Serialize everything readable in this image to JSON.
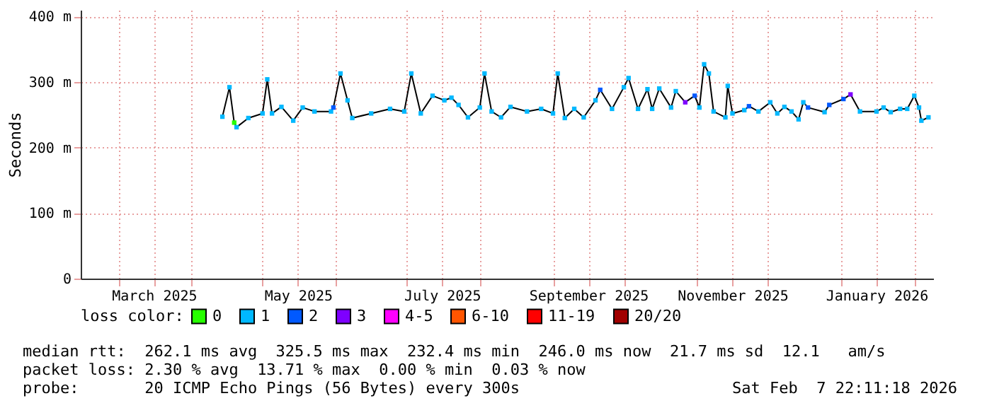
{
  "chart_data": {
    "type": "line",
    "ylabel": "Seconds",
    "legend_title": "loss color:",
    "legend": "bottom",
    "grid": true,
    "marker": "square",
    "xlim": [
      "2025-02-13",
      "2026-02-09"
    ],
    "xticks": [
      {
        "value": "2025-03-01",
        "label": null
      },
      {
        "value": "2025-03-16",
        "label": "March 2025"
      },
      {
        "value": "2025-04-01",
        "label": null
      },
      {
        "value": "2025-05-01",
        "label": null
      },
      {
        "value": "2025-05-16",
        "label": "May 2025"
      },
      {
        "value": "2025-06-01",
        "label": null
      },
      {
        "value": "2025-07-01",
        "label": null
      },
      {
        "value": "2025-07-16",
        "label": "July 2025"
      },
      {
        "value": "2025-08-01",
        "label": null
      },
      {
        "value": "2025-09-01",
        "label": null
      },
      {
        "value": "2025-09-16",
        "label": "September 2025"
      },
      {
        "value": "2025-10-01",
        "label": null
      },
      {
        "value": "2025-11-01",
        "label": null
      },
      {
        "value": "2025-11-16",
        "label": "November 2025"
      },
      {
        "value": "2025-12-01",
        "label": null
      },
      {
        "value": "2026-01-01",
        "label": null
      },
      {
        "value": "2026-01-16",
        "label": "January 2026"
      },
      {
        "value": "2026-02-01",
        "label": null
      }
    ],
    "ylim": [
      0,
      410
    ],
    "yticks": [
      0,
      {
        "value": 100,
        "label": "100 m"
      },
      {
        "value": 200,
        "label": "200 m"
      },
      {
        "value": 300,
        "label": "300 m"
      },
      {
        "value": 400,
        "label": "400 m"
      }
    ],
    "annotations": [
      "median rtt:  262.1 ms avg  325.5 ms max  232.4 ms min  246.0 ms now  21.7 ms sd  12.1   am/s",
      "packet loss: 2.30 % avg  13.71 % max  0.00 % min  0.03 % now",
      "probe:       20 ICMP Echo Pings (56 Bytes) every 300s",
      "Sat Feb  7 22:11:18 2026"
    ],
    "series": [
      {
        "type": "line",
        "color": "#000000",
        "marker": "none",
        "x": [
          "2025-04-14",
          "2025-04-17",
          "2025-04-19",
          "2025-04-20",
          "2025-04-25",
          "2025-05-01",
          "2025-05-03",
          "2025-05-05",
          "2025-05-09",
          "2025-05-14",
          "2025-05-18",
          "2025-05-23",
          "2025-05-30",
          "2025-05-31",
          "2025-06-03",
          "2025-06-06",
          "2025-06-08",
          "2025-06-16",
          "2025-06-24",
          "2025-06-30",
          "2025-07-03",
          "2025-07-07",
          "2025-07-12",
          "2025-07-17",
          "2025-07-20",
          "2025-07-23",
          "2025-07-27",
          "2025-08-01",
          "2025-08-03",
          "2025-08-06",
          "2025-08-10",
          "2025-08-14",
          "2025-08-21",
          "2025-08-27",
          "2025-09-01",
          "2025-09-03",
          "2025-09-06",
          "2025-09-10",
          "2025-09-14",
          "2025-09-19",
          "2025-09-21",
          "2025-09-26",
          "2025-10-01",
          "2025-10-03",
          "2025-10-07",
          "2025-10-11",
          "2025-10-13",
          "2025-10-16",
          "2025-10-21",
          "2025-10-23",
          "2025-10-27",
          "2025-10-31",
          "2025-11-02",
          "2025-11-04",
          "2025-11-06",
          "2025-11-08",
          "2025-11-13",
          "2025-11-14",
          "2025-11-16",
          "2025-11-21",
          "2025-11-23",
          "2025-11-27",
          "2025-12-02",
          "2025-12-05",
          "2025-12-08",
          "2025-12-11",
          "2025-12-14",
          "2025-12-16",
          "2025-12-18",
          "2025-12-25",
          "2025-12-27",
          "2026-01-02",
          "2026-01-05",
          "2026-01-09",
          "2026-01-16",
          "2026-01-19",
          "2026-01-22",
          "2026-01-26",
          "2026-01-29",
          "2026-02-01",
          "2026-02-03",
          "2026-02-04",
          "2026-02-07"
        ],
        "values": [
          247,
          292,
          238,
          231,
          245,
          252,
          304,
          252,
          262,
          241,
          261,
          255,
          255,
          261,
          313,
          272,
          245,
          252,
          259,
          255,
          313,
          252,
          279,
          272,
          276,
          265,
          246,
          261,
          313,
          255,
          246,
          262,
          255,
          259,
          252,
          313,
          245,
          259,
          246,
          272,
          288,
          259,
          292,
          306,
          259,
          289,
          259,
          290,
          261,
          286,
          269,
          279,
          261,
          327,
          313,
          255,
          246,
          294,
          252,
          257,
          263,
          255,
          269,
          252,
          262,
          255,
          243,
          269,
          261,
          254,
          265,
          274,
          281,
          255,
          255,
          261,
          254,
          259,
          259,
          279,
          261,
          241,
          246
        ]
      },
      {
        "type": "scatter",
        "name": "0",
        "color": "#26ff00",
        "x": [
          "2025-04-19"
        ],
        "values": [
          238
        ]
      },
      {
        "type": "scatter",
        "name": "1",
        "color": "#00b8ff",
        "x": [
          "2025-04-14",
          "2025-04-17",
          "2025-04-20",
          "2025-04-25",
          "2025-05-01",
          "2025-05-03",
          "2025-05-05",
          "2025-05-09",
          "2025-05-14",
          "2025-05-18",
          "2025-05-23",
          "2025-05-30",
          "2025-06-03",
          "2025-06-06",
          "2025-06-08",
          "2025-06-16",
          "2025-06-24",
          "2025-06-30",
          "2025-07-03",
          "2025-07-07",
          "2025-07-12",
          "2025-07-17",
          "2025-07-20",
          "2025-07-23",
          "2025-07-27",
          "2025-08-01",
          "2025-08-03",
          "2025-08-06",
          "2025-08-10",
          "2025-08-14",
          "2025-08-21",
          "2025-08-27",
          "2025-09-01",
          "2025-09-03",
          "2025-09-06",
          "2025-09-10",
          "2025-09-14",
          "2025-09-19",
          "2025-09-26",
          "2025-10-01",
          "2025-10-03",
          "2025-10-07",
          "2025-10-11",
          "2025-10-13",
          "2025-10-16",
          "2025-10-21",
          "2025-10-23",
          "2025-11-02",
          "2025-11-04",
          "2025-11-06",
          "2025-11-08",
          "2025-11-13",
          "2025-11-14",
          "2025-11-16",
          "2025-11-21",
          "2025-11-27",
          "2025-12-02",
          "2025-12-05",
          "2025-12-08",
          "2025-12-11",
          "2025-12-14",
          "2025-12-16",
          "2025-12-25",
          "2026-01-09",
          "2026-01-16",
          "2026-01-19",
          "2026-01-22",
          "2026-01-26",
          "2026-01-29",
          "2026-02-01",
          "2026-02-03",
          "2026-02-04",
          "2026-02-07"
        ],
        "values": [
          247,
          292,
          231,
          245,
          252,
          304,
          252,
          262,
          241,
          261,
          255,
          255,
          313,
          272,
          245,
          252,
          259,
          255,
          313,
          252,
          279,
          272,
          276,
          265,
          246,
          261,
          313,
          255,
          246,
          262,
          255,
          259,
          252,
          313,
          245,
          259,
          246,
          272,
          259,
          292,
          306,
          259,
          289,
          259,
          290,
          261,
          286,
          261,
          327,
          313,
          255,
          246,
          294,
          252,
          257,
          255,
          269,
          252,
          262,
          255,
          243,
          269,
          254,
          255,
          255,
          261,
          254,
          259,
          259,
          279,
          261,
          241,
          246
        ]
      },
      {
        "type": "scatter",
        "name": "2",
        "color": "#0059ff",
        "x": [
          "2025-05-31",
          "2025-09-21",
          "2025-10-31",
          "2025-11-23",
          "2025-12-18",
          "2025-12-27",
          "2026-01-02"
        ],
        "values": [
          261,
          288,
          279,
          263,
          261,
          265,
          274
        ]
      },
      {
        "type": "scatter",
        "name": "3",
        "color": "#7e00ff",
        "x": [
          "2025-10-27",
          "2026-01-05"
        ],
        "values": [
          269,
          281
        ]
      },
      {
        "type": "scatter",
        "name": "4-5",
        "color": "#ff00ff"
      },
      {
        "type": "scatter",
        "name": "6-10",
        "color": "#ff5500"
      },
      {
        "type": "scatter",
        "name": "11-19",
        "color": "#ff0000"
      },
      {
        "type": "scatter",
        "name": "20/20",
        "color": "#a10000"
      }
    ]
  }
}
